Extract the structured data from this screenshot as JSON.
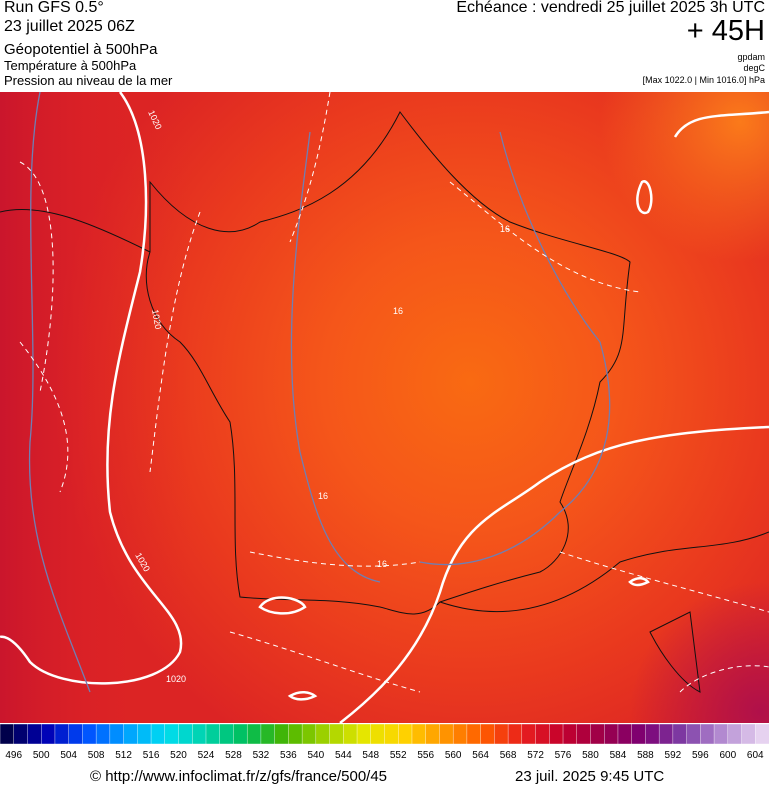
{
  "header": {
    "run": "Run GFS 0.5°",
    "date": "23 juillet 2025 06Z",
    "field": "Géopotentiel à 500hPa",
    "field2": "Température à 500hPa",
    "field3": "Pression au niveau de la mer",
    "echeance": "Echéance : vendredi 25 juillet 2025 3h UTC",
    "lead": "+ 45H",
    "unit1": "gpdam",
    "unit2": "degC",
    "pressure_range": "[Max 1022.0 | Min 1016.0] hPa"
  },
  "map": {
    "contour_labels": [
      "1020",
      "1020",
      "1020",
      "1020",
      "16",
      "16",
      "16",
      "16"
    ]
  },
  "colorbar": {
    "labels": [
      496,
      500,
      504,
      508,
      512,
      516,
      520,
      524,
      528,
      532,
      536,
      540,
      544,
      548,
      552,
      556,
      560,
      564,
      568,
      572,
      576,
      580,
      584,
      588,
      592,
      596,
      600,
      604
    ]
  },
  "footer": {
    "source": "© http://www.infoclimat.fr/z/gfs/france/500/45",
    "timestamp": "23 juil. 2025  9:45 UTC"
  }
}
